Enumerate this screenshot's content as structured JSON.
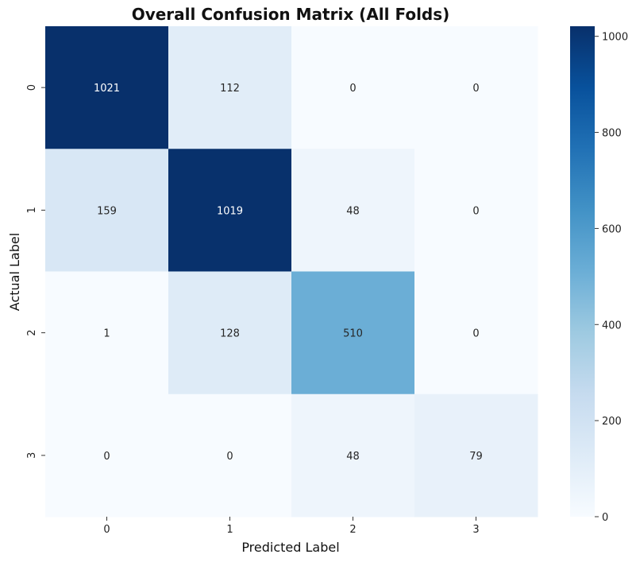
{
  "chart_data": {
    "type": "heatmap",
    "title": "Overall Confusion Matrix (All Folds)",
    "xlabel": "Predicted Label",
    "ylabel": "Actual Label",
    "x_categories": [
      "0",
      "1",
      "2",
      "3"
    ],
    "y_categories": [
      "0",
      "1",
      "2",
      "3"
    ],
    "values": [
      [
        1021,
        112,
        0,
        0
      ],
      [
        159,
        1019,
        48,
        0
      ],
      [
        1,
        128,
        510,
        0
      ],
      [
        0,
        0,
        48,
        79
      ]
    ],
    "colorbar": {
      "colormap": "Blues",
      "range": [
        0,
        1021
      ],
      "ticks": [
        0,
        200,
        400,
        600,
        800,
        1000
      ]
    },
    "grid": false
  }
}
